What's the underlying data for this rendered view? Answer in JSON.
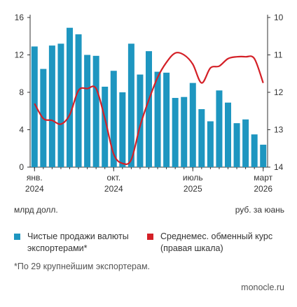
{
  "chart_data": {
    "type": "bar+line",
    "x": [
      "2024-01",
      "2024-02",
      "2024-03",
      "2024-04",
      "2024-05",
      "2024-06",
      "2024-07",
      "2024-08",
      "2024-09",
      "2024-10",
      "2024-11",
      "2024-12",
      "2025-01",
      "2025-02",
      "2025-03",
      "2025-04",
      "2025-05",
      "2025-06",
      "2025-07",
      "2025-08",
      "2025-09",
      "2025-10",
      "2025-11",
      "2025-12",
      "2026-01",
      "2026-02",
      "2026-03"
    ],
    "x_tick_labels": [
      {
        "x": "2024-01",
        "line1": "янв.",
        "line2": "2024"
      },
      {
        "x": "2024-10",
        "line1": "окт.",
        "line2": "2024"
      },
      {
        "x": "2025-07",
        "line1": "июль",
        "line2": "2025"
      },
      {
        "x": "2026-03",
        "line1": "март",
        "line2": "2026"
      }
    ],
    "series": [
      {
        "name": "Чистые продажи валюты экспортерами*",
        "type": "bar",
        "axis": "left",
        "color": "#1e96c0",
        "values": [
          12.9,
          10.5,
          13.0,
          13.2,
          14.9,
          14.2,
          12.0,
          11.9,
          8.6,
          10.3,
          8.0,
          13.2,
          9.9,
          12.4,
          10.2,
          10.1,
          7.4,
          7.5,
          9.0,
          6.2,
          4.9,
          8.2,
          6.9,
          4.7,
          5.1,
          3.5,
          2.4
        ]
      },
      {
        "name": "Среднемес. обменный курс (правая шкала)",
        "type": "line",
        "axis": "right",
        "color": "#d42027",
        "values": [
          12.3,
          12.7,
          12.75,
          12.85,
          12.6,
          11.95,
          11.9,
          11.9,
          12.7,
          13.65,
          13.9,
          13.8,
          12.9,
          12.2,
          11.6,
          11.2,
          10.95,
          11.0,
          11.25,
          11.75,
          11.35,
          11.3,
          11.1,
          11.05,
          11.05,
          11.1,
          11.75
        ]
      }
    ],
    "y_left": {
      "min": 0,
      "max": 16,
      "ticks": [
        0,
        4,
        8,
        12,
        16
      ],
      "label": "млрд долл."
    },
    "y_right": {
      "min": 10,
      "max": 14,
      "inverted": true,
      "ticks": [
        10,
        11,
        12,
        13,
        14
      ],
      "label": "руб. за юань"
    },
    "grid": false,
    "legend_position": "bottom"
  },
  "texts": {
    "left_unit": "млрд долл.",
    "right_unit": "руб. за юань",
    "legend_bar_line1": "Чистые продажи валюты",
    "legend_bar_line2": "экспортерами*",
    "legend_line_line1": "Среднемес. обменный курс",
    "legend_line_line2": "(правая шкала)",
    "footnote": "*По 29 крупнейшим экспортерам.",
    "source": "monocle.ru"
  },
  "colors": {
    "bar": "#1e96c0",
    "line": "#d42027",
    "axis": "#333333"
  }
}
